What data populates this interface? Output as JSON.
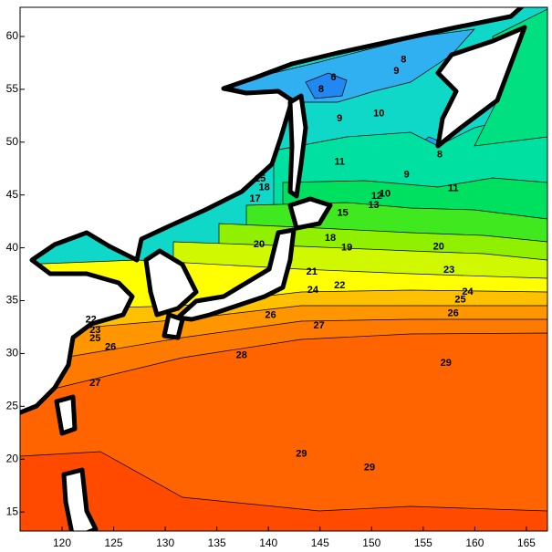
{
  "map": {
    "xlim": [
      115.93,
      167.04
    ],
    "ylim": [
      13.2,
      62.76
    ],
    "xticks": [
      120,
      125,
      130,
      135,
      140,
      145,
      150,
      155,
      160,
      165
    ],
    "yticks": [
      15,
      20,
      25,
      30,
      35,
      40,
      45,
      50,
      55,
      60
    ],
    "contour_labels": [
      {
        "text": "8",
        "lon": 153.1,
        "lat": 57.8
      },
      {
        "text": "9",
        "lon": 152.4,
        "lat": 56.7
      },
      {
        "text": "6",
        "lon": 146.3,
        "lat": 56.1
      },
      {
        "text": "8",
        "lon": 145.1,
        "lat": 55.0
      },
      {
        "text": "9",
        "lon": 146.9,
        "lat": 52.2
      },
      {
        "text": "10",
        "lon": 150.7,
        "lat": 52.7
      },
      {
        "text": "11",
        "lon": 146.9,
        "lat": 48.1
      },
      {
        "text": "9",
        "lon": 153.4,
        "lat": 46.9
      },
      {
        "text": "8",
        "lon": 156.6,
        "lat": 48.8
      },
      {
        "text": "10",
        "lon": 151.3,
        "lat": 45.1
      },
      {
        "text": "11",
        "lon": 157.9,
        "lat": 45.6
      },
      {
        "text": "12",
        "lon": 150.5,
        "lat": 44.9
      },
      {
        "text": "13",
        "lon": 150.2,
        "lat": 44.0
      },
      {
        "text": "15",
        "lon": 147.2,
        "lat": 43.3
      },
      {
        "text": "15",
        "lon": 139.2,
        "lat": 46.5
      },
      {
        "text": "17",
        "lon": 138.7,
        "lat": 44.6
      },
      {
        "text": "18",
        "lon": 139.6,
        "lat": 45.7
      },
      {
        "text": "20",
        "lon": 139.1,
        "lat": 40.3
      },
      {
        "text": "18",
        "lon": 146.0,
        "lat": 40.9
      },
      {
        "text": "19",
        "lon": 147.6,
        "lat": 40.0
      },
      {
        "text": "20",
        "lon": 156.5,
        "lat": 40.1
      },
      {
        "text": "21",
        "lon": 144.2,
        "lat": 37.7
      },
      {
        "text": "22",
        "lon": 146.9,
        "lat": 36.4
      },
      {
        "text": "24",
        "lon": 144.3,
        "lat": 36.0
      },
      {
        "text": "23",
        "lon": 157.5,
        "lat": 37.9
      },
      {
        "text": "24",
        "lon": 159.3,
        "lat": 35.8
      },
      {
        "text": "25",
        "lon": 158.6,
        "lat": 35.1
      },
      {
        "text": "26",
        "lon": 157.9,
        "lat": 33.8
      },
      {
        "text": "26",
        "lon": 140.2,
        "lat": 33.6
      },
      {
        "text": "27",
        "lon": 144.9,
        "lat": 32.6
      },
      {
        "text": "22",
        "lon": 122.8,
        "lat": 33.2
      },
      {
        "text": "23",
        "lon": 123.2,
        "lat": 32.2
      },
      {
        "text": "25",
        "lon": 123.2,
        "lat": 31.4
      },
      {
        "text": "26",
        "lon": 124.7,
        "lat": 30.6
      },
      {
        "text": "27",
        "lon": 123.2,
        "lat": 27.2
      },
      {
        "text": "28",
        "lon": 137.4,
        "lat": 29.8
      },
      {
        "text": "29",
        "lon": 157.2,
        "lat": 29.1
      },
      {
        "text": "29",
        "lon": 143.2,
        "lat": 20.5
      },
      {
        "text": "29",
        "lon": 149.8,
        "lat": 19.2
      }
    ]
  }
}
